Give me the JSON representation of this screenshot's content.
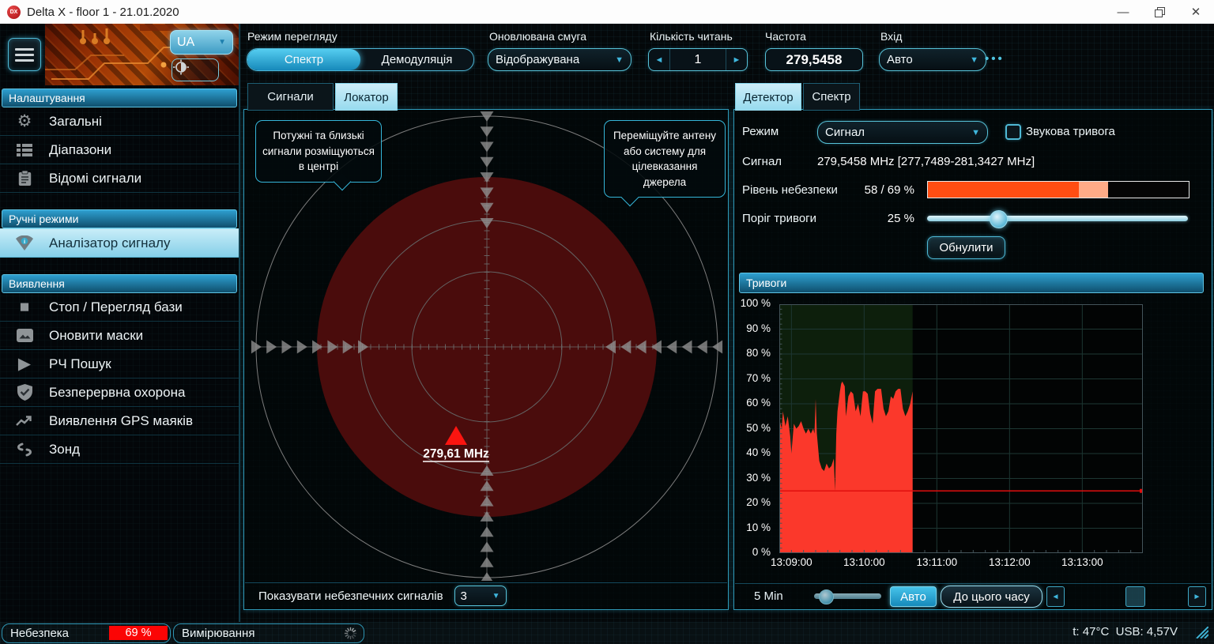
{
  "window": {
    "title": "Delta X - floor 1 - 21.01.2020",
    "app_icon_text": "DX",
    "controls": {
      "minimize": "minimize",
      "restore": "restore",
      "close": "close"
    }
  },
  "branding": {
    "language": "UA"
  },
  "sidebar": {
    "sections": [
      {
        "title": "Налаштування",
        "items": [
          {
            "label": "Загальні",
            "icon": "gear-icon"
          },
          {
            "label": "Діапазони",
            "icon": "ranges-icon"
          },
          {
            "label": "Відомі сигнали",
            "icon": "clipboard-icon"
          }
        ]
      },
      {
        "title": "Ручні режими",
        "items": [
          {
            "label": "Аналізатор сигналу",
            "icon": "signal-analyzer-icon",
            "active": true
          }
        ]
      },
      {
        "title": "Виявлення",
        "items": [
          {
            "label": "Стоп / Перегляд бази",
            "icon": "stop-icon"
          },
          {
            "label": "Оновити маски",
            "icon": "masks-icon"
          },
          {
            "label": "РЧ Пошук",
            "icon": "play-icon"
          },
          {
            "label": "Безперервна охорона",
            "icon": "shield-icon"
          },
          {
            "label": "Виявлення GPS маяків",
            "icon": "gps-trend-icon"
          },
          {
            "label": "Зонд",
            "icon": "probe-icon"
          }
        ]
      }
    ]
  },
  "toolbar": {
    "view_mode": {
      "label": "Режим перегляду",
      "options": [
        "Спектр",
        "Демодуляція"
      ],
      "selected": "Спектр"
    },
    "update_band": {
      "label": "Оновлювана смуга",
      "value": "Відображувана"
    },
    "read_count": {
      "label": "Кількість читань",
      "value": "1"
    },
    "frequency": {
      "label": "Частота",
      "value": "279,5458"
    },
    "input": {
      "label": "Вхід",
      "value": "Авто"
    },
    "more": "•••"
  },
  "locator": {
    "tabs": {
      "signals": "Сигнали",
      "locator": "Локатор"
    },
    "tooltip_left": "Потужні та близькі сигнали розміщуються в центрі",
    "tooltip_right": "Переміщуйте антену або систему для цілевказання джерела",
    "marker_label": "279,61 MHz",
    "show_signals": {
      "label": "Показувати небезпечних сигналів",
      "value": "3"
    }
  },
  "detector": {
    "tabs": {
      "detector": "Детектор",
      "spectrum": "Спектр"
    },
    "mode": {
      "label": "Режим",
      "value": "Сигнал"
    },
    "sound_alarm": {
      "label": "Звукова тривога",
      "checked": false
    },
    "signal": {
      "label": "Сигнал",
      "value": "279,5458 MHz [277,7489-281,3427 MHz]"
    },
    "danger_level": {
      "label": "Рівень небезпеки",
      "value": "58 / 69 %",
      "current_pct": 58,
      "max_pct": 69
    },
    "alarm_threshold": {
      "label": "Поріг тривоги",
      "value": "25 %",
      "pct": 25
    },
    "reset_button": "Обнулити",
    "history": {
      "window_label": "5 Min",
      "auto_button": "Авто",
      "to_now_button": "До цього часу"
    }
  },
  "chart_data": {
    "type": "area",
    "title": "Тривоги",
    "ylabel": "%",
    "ylim": [
      0,
      100
    ],
    "y_tick_step": 10,
    "y_tick_suffix": " %",
    "grid": true,
    "legend": "none",
    "x_span_seconds": 300,
    "x_ticks": [
      {
        "t": 10,
        "label": "13:09:00"
      },
      {
        "t": 70,
        "label": "13:10:00"
      },
      {
        "t": 130,
        "label": "13:11:00"
      },
      {
        "t": 190,
        "label": "13:12:00"
      },
      {
        "t": 250,
        "label": "13:13:00"
      }
    ],
    "threshold_pct": 25,
    "recorded_until_seconds": 110,
    "colors": {
      "area": "#fb382b",
      "threshold": "#e00e0e",
      "recorded_bg": "#0d1f0c",
      "grid": "#1d3733",
      "frame": "#44545a"
    },
    "series": [
      {
        "name": "Рівень небезпеки %",
        "points": [
          [
            0,
            54
          ],
          [
            2,
            50
          ],
          [
            3,
            57
          ],
          [
            5,
            51
          ],
          [
            7,
            55
          ],
          [
            9,
            47
          ],
          [
            10,
            40
          ],
          [
            12,
            52
          ],
          [
            14,
            50
          ],
          [
            16,
            51
          ],
          [
            18,
            53
          ],
          [
            20,
            50
          ],
          [
            22,
            48
          ],
          [
            24,
            50
          ],
          [
            26,
            48
          ],
          [
            28,
            50
          ],
          [
            29,
            48
          ],
          [
            30,
            62
          ],
          [
            31,
            48
          ],
          [
            33,
            37
          ],
          [
            35,
            34
          ],
          [
            37,
            33
          ],
          [
            39,
            36
          ],
          [
            41,
            34
          ],
          [
            43,
            35
          ],
          [
            45,
            38
          ],
          [
            46,
            25
          ],
          [
            47,
            48
          ],
          [
            48,
            57
          ],
          [
            50,
            65
          ],
          [
            51,
            68
          ],
          [
            52,
            69
          ],
          [
            54,
            67
          ],
          [
            55,
            55
          ],
          [
            57,
            63
          ],
          [
            59,
            65
          ],
          [
            61,
            64
          ],
          [
            63,
            57
          ],
          [
            65,
            60
          ],
          [
            67,
            55
          ],
          [
            69,
            65
          ],
          [
            71,
            65
          ],
          [
            73,
            64
          ],
          [
            75,
            56
          ],
          [
            77,
            52
          ],
          [
            79,
            65
          ],
          [
            81,
            66
          ],
          [
            84,
            66
          ],
          [
            86,
            58
          ],
          [
            88,
            55
          ],
          [
            90,
            57
          ],
          [
            92,
            63
          ],
          [
            94,
            62
          ],
          [
            96,
            65
          ],
          [
            98,
            66
          ],
          [
            100,
            66
          ],
          [
            102,
            58
          ],
          [
            104,
            55
          ],
          [
            106,
            57
          ],
          [
            108,
            60
          ],
          [
            110,
            65
          ]
        ]
      }
    ]
  },
  "status_bar": {
    "danger": {
      "label": "Небезпека",
      "value": "69 %"
    },
    "measuring": {
      "label": "Вимірювання"
    },
    "right_text": "t: 47°C  USB: 4,57V"
  },
  "colors": {
    "accent": "#3db6d8",
    "accent_bright": "#35c5ef",
    "danger_red": "#fb0505",
    "bar_orange": "#ff4d12",
    "bar_salmon": "#ffab87",
    "radar_blob": "#4a0c0c"
  }
}
